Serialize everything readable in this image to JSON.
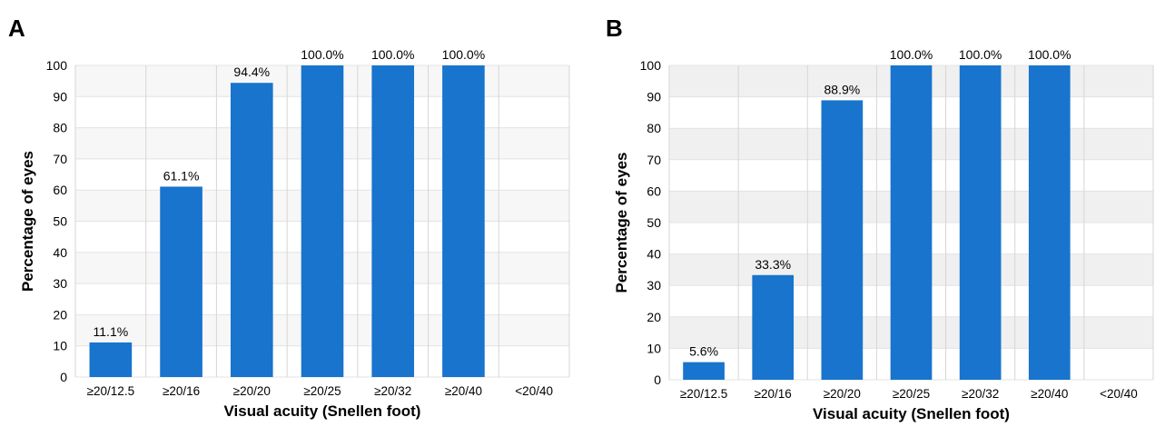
{
  "chart_data": [
    {
      "panel": "A",
      "type": "bar",
      "categories": [
        "≥20/12.5",
        "≥20/16",
        "≥20/20",
        "≥20/25",
        "≥20/32",
        "≥20/40",
        "<20/40"
      ],
      "values": [
        11.1,
        61.1,
        94.4,
        100.0,
        100.0,
        100.0,
        0
      ],
      "data_labels": [
        "11.1%",
        "61.1%",
        "94.4%",
        "100.0%",
        "100.0%",
        "100.0%",
        ""
      ],
      "xlabel": "Visual acuity (Snellen foot)",
      "ylabel": "Percentage of eyes",
      "ylim": [
        0,
        100
      ],
      "yticks": [
        0,
        10,
        20,
        30,
        40,
        50,
        60,
        70,
        80,
        90,
        100
      ],
      "grid": true,
      "bar_color": "#1874CD",
      "band_colors": [
        "#F7F7F7",
        "#FFFFFF"
      ]
    },
    {
      "panel": "B",
      "type": "bar",
      "categories": [
        "≥20/12.5",
        "≥20/16",
        "≥20/20",
        "≥20/25",
        "≥20/32",
        "≥20/40",
        "<20/40"
      ],
      "values": [
        5.6,
        33.3,
        88.9,
        100.0,
        100.0,
        100.0,
        0
      ],
      "data_labels": [
        "5.6%",
        "33.3%",
        "88.9%",
        "100.0%",
        "100.0%",
        "100.0%",
        ""
      ],
      "xlabel": "Visual acuity (Snellen foot)",
      "ylabel": "Percentage of eyes",
      "ylim": [
        0,
        100
      ],
      "yticks": [
        0,
        10,
        20,
        30,
        40,
        50,
        60,
        70,
        80,
        90,
        100
      ],
      "grid": true,
      "bar_color": "#1874CD",
      "band_colors": [
        "#F0F0F0",
        "#FFFFFF"
      ]
    }
  ]
}
